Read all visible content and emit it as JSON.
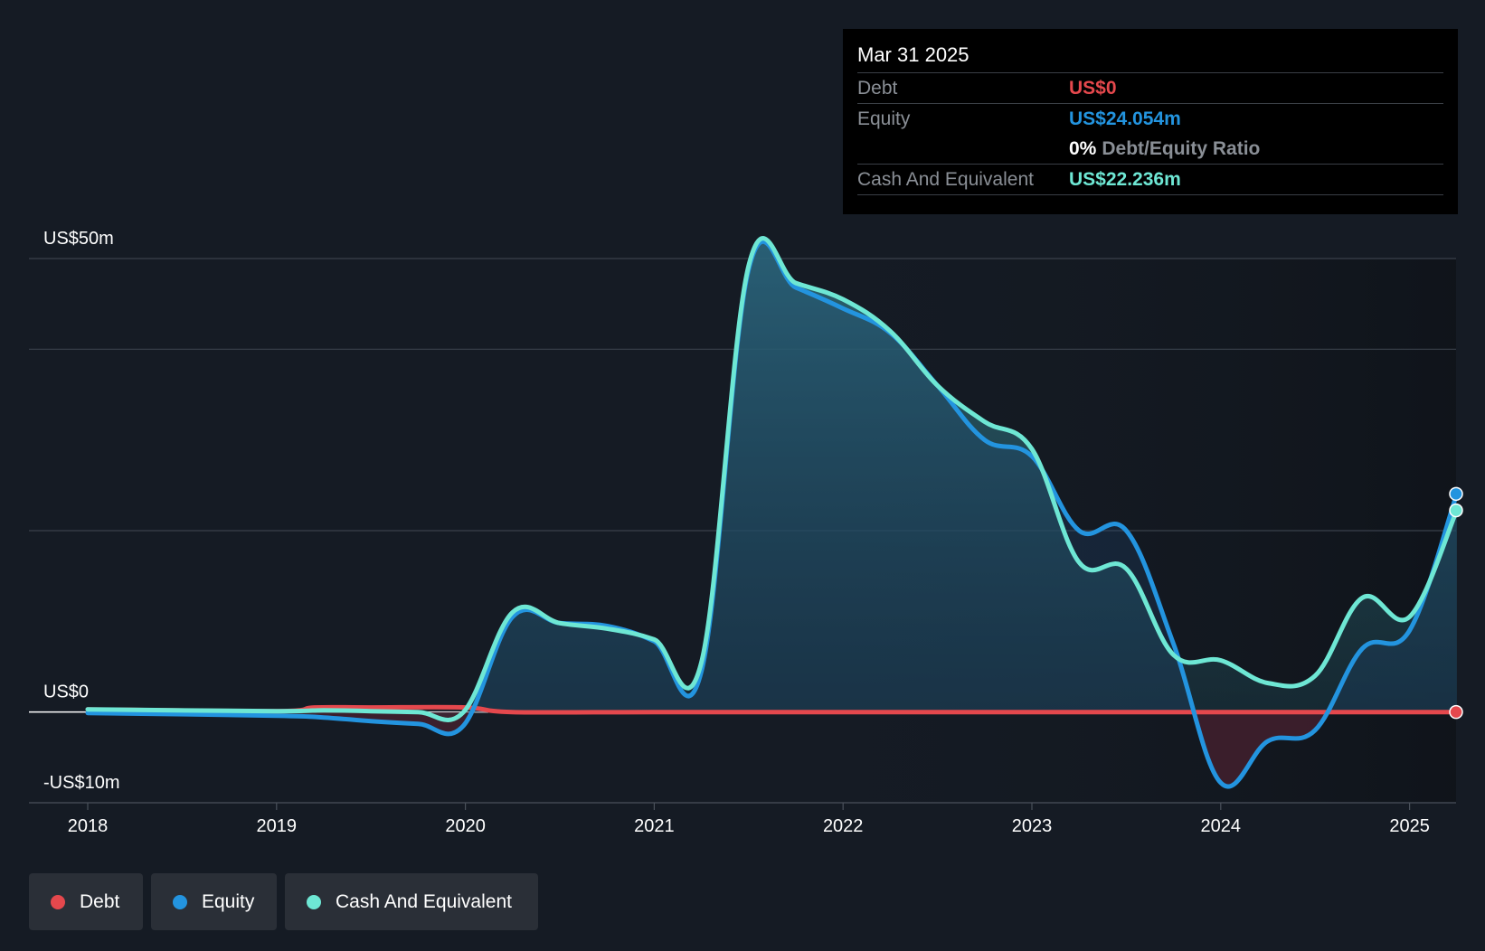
{
  "chart_data": {
    "type": "area",
    "y_labels": {
      "top": "US$50m",
      "zero": "US$0",
      "bottom": "-US$10m"
    },
    "ylim": [
      -10,
      50
    ],
    "gridlines": [
      50,
      40,
      20
    ],
    "x_ticks": [
      "2018",
      "2019",
      "2020",
      "2021",
      "2022",
      "2023",
      "2024",
      "2025"
    ],
    "colors": {
      "debt": "#e5484d",
      "equity": "#2394df",
      "cash": "#6ee7d4"
    },
    "series": [
      {
        "name": "Debt",
        "points": [
          [
            2018.0,
            0.3
          ],
          [
            2019.0,
            0.1
          ],
          [
            2019.2,
            0.5
          ],
          [
            2019.5,
            0.5
          ],
          [
            2020.0,
            0.5
          ],
          [
            2020.25,
            0.0
          ],
          [
            2021.0,
            0.0
          ],
          [
            2022.0,
            0.0
          ],
          [
            2023.0,
            0.0
          ],
          [
            2024.0,
            0.0
          ],
          [
            2025.0,
            0.0
          ],
          [
            2025.25,
            0.0
          ]
        ]
      },
      {
        "name": "Equity",
        "points": [
          [
            2018.0,
            -0.1
          ],
          [
            2019.0,
            -0.4
          ],
          [
            2019.25,
            -0.6
          ],
          [
            2019.5,
            -1.0
          ],
          [
            2019.75,
            -1.3
          ],
          [
            2019.99,
            -1.5
          ],
          [
            2020.25,
            10.5
          ],
          [
            2020.5,
            9.8
          ],
          [
            2020.75,
            9.5
          ],
          [
            2021.0,
            7.8
          ],
          [
            2021.25,
            4.5
          ],
          [
            2021.5,
            48.8
          ],
          [
            2021.75,
            46.8
          ],
          [
            2022.0,
            44.5
          ],
          [
            2022.25,
            41.8
          ],
          [
            2022.5,
            36.0
          ],
          [
            2022.75,
            30.0
          ],
          [
            2023.0,
            28.2
          ],
          [
            2023.25,
            20.0
          ],
          [
            2023.5,
            20.0
          ],
          [
            2023.75,
            7.5
          ],
          [
            2024.0,
            -7.8
          ],
          [
            2024.25,
            -3.2
          ],
          [
            2024.5,
            -2.0
          ],
          [
            2024.75,
            7.0
          ],
          [
            2025.0,
            9.0
          ],
          [
            2025.25,
            24.054
          ]
        ]
      },
      {
        "name": "Cash And Equivalent",
        "points": [
          [
            2018.0,
            0.3
          ],
          [
            2019.0,
            0.1
          ],
          [
            2019.25,
            0.2
          ],
          [
            2019.5,
            0.1
          ],
          [
            2019.75,
            0.0
          ],
          [
            2019.99,
            0.0
          ],
          [
            2020.25,
            11.0
          ],
          [
            2020.5,
            9.8
          ],
          [
            2020.75,
            9.2
          ],
          [
            2021.0,
            8.0
          ],
          [
            2021.25,
            5.5
          ],
          [
            2021.5,
            49.2
          ],
          [
            2021.75,
            47.3
          ],
          [
            2022.0,
            45.5
          ],
          [
            2022.25,
            42.0
          ],
          [
            2022.5,
            36.0
          ],
          [
            2022.75,
            32.0
          ],
          [
            2023.0,
            29.0
          ],
          [
            2023.25,
            16.5
          ],
          [
            2023.5,
            15.8
          ],
          [
            2023.75,
            6.3
          ],
          [
            2024.0,
            5.7
          ],
          [
            2024.25,
            3.2
          ],
          [
            2024.5,
            4.0
          ],
          [
            2024.75,
            12.6
          ],
          [
            2025.0,
            10.5
          ],
          [
            2025.25,
            22.236
          ]
        ]
      }
    ]
  },
  "tooltip": {
    "date": "Mar 31 2025",
    "debt_label": "Debt",
    "debt_value": "US$0",
    "equity_label": "Equity",
    "equity_value": "US$24.054m",
    "ratio_pct": "0%",
    "ratio_label": "Debt/Equity Ratio",
    "cash_label": "Cash And Equivalent",
    "cash_value": "US$22.236m"
  },
  "legend": {
    "debt": "Debt",
    "equity": "Equity",
    "cash": "Cash And Equivalent"
  }
}
